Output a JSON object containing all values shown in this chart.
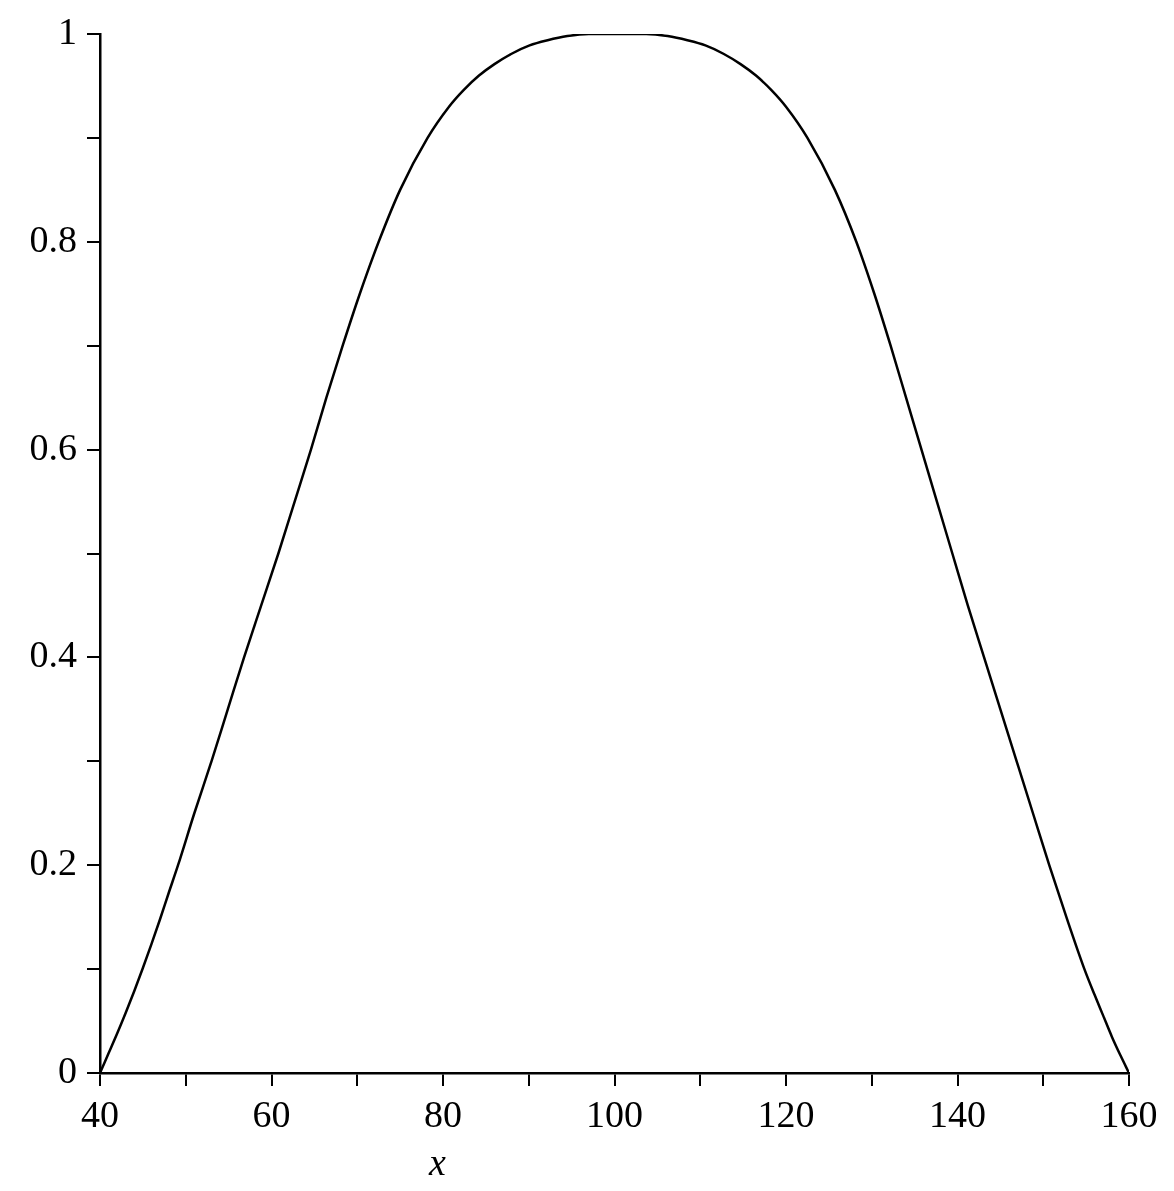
{
  "chart_data": {
    "type": "line",
    "xlabel": "x",
    "xlim": [
      40,
      160
    ],
    "xticks": [
      40,
      {
        "value": 50,
        "label": null
      },
      60,
      {
        "value": 70,
        "label": null
      },
      80,
      {
        "value": 90,
        "label": null
      },
      100,
      {
        "value": 110,
        "label": null
      },
      120,
      {
        "value": 130,
        "label": null
      },
      140,
      {
        "value": 150,
        "label": null
      },
      160
    ],
    "ylim": [
      0,
      1
    ],
    "yticks": [
      0,
      {
        "value": 0.1,
        "label": null
      },
      0.2,
      {
        "value": 0.3,
        "label": null
      },
      0.4,
      {
        "value": 0.5,
        "label": null
      },
      0.6,
      {
        "value": 0.7,
        "label": null
      },
      0.8,
      {
        "value": 0.9,
        "label": null
      },
      1
    ],
    "grid": false,
    "legend": false,
    "marker": "none",
    "line_style": "solid",
    "color": "#000000",
    "x": [
      40,
      41,
      42,
      43,
      44,
      45,
      46,
      47,
      48,
      49.1,
      51,
      53,
      54.9,
      56.8,
      58.8,
      60.8,
      62.7,
      64.6,
      66.4,
      68.3,
      70.3,
      72.5,
      75,
      78.2,
      80.7,
      82.4,
      84.2,
      86,
      88,
      90.1,
      92.2,
      94.5,
      97,
      100,
      103.7,
      106.2,
      108.5,
      110.6,
      112.7,
      114.7,
      116.5,
      118.3,
      120,
      122.5,
      125.7,
      128.2,
      130.3,
      132.2,
      134,
      135.8,
      137.6,
      139.4,
      141.2,
      143.1,
      145,
      146.9,
      148.8,
      150.7,
      152.7,
      154.8,
      156,
      157,
      158,
      159,
      160
    ],
    "values": [
      0,
      0.019,
      0.038,
      0.058,
      0.079,
      0.101,
      0.124,
      0.148,
      0.173,
      0.2,
      0.25,
      0.3,
      0.35,
      0.4,
      0.45,
      0.5,
      0.55,
      0.6,
      0.65,
      0.7,
      0.75,
      0.8,
      0.85,
      0.9,
      0.93,
      0.946,
      0.96,
      0.971,
      0.981,
      0.989,
      0.994,
      0.998,
      1,
      1,
      1,
      0.998,
      0.994,
      0.989,
      0.981,
      0.971,
      0.96,
      0.946,
      0.93,
      0.9,
      0.85,
      0.8,
      0.75,
      0.7,
      0.65,
      0.6,
      0.55,
      0.5,
      0.45,
      0.4,
      0.35,
      0.3,
      0.25,
      0.2,
      0.15,
      0.1,
      0.075,
      0.055,
      0.035,
      0.017,
      0
    ]
  }
}
